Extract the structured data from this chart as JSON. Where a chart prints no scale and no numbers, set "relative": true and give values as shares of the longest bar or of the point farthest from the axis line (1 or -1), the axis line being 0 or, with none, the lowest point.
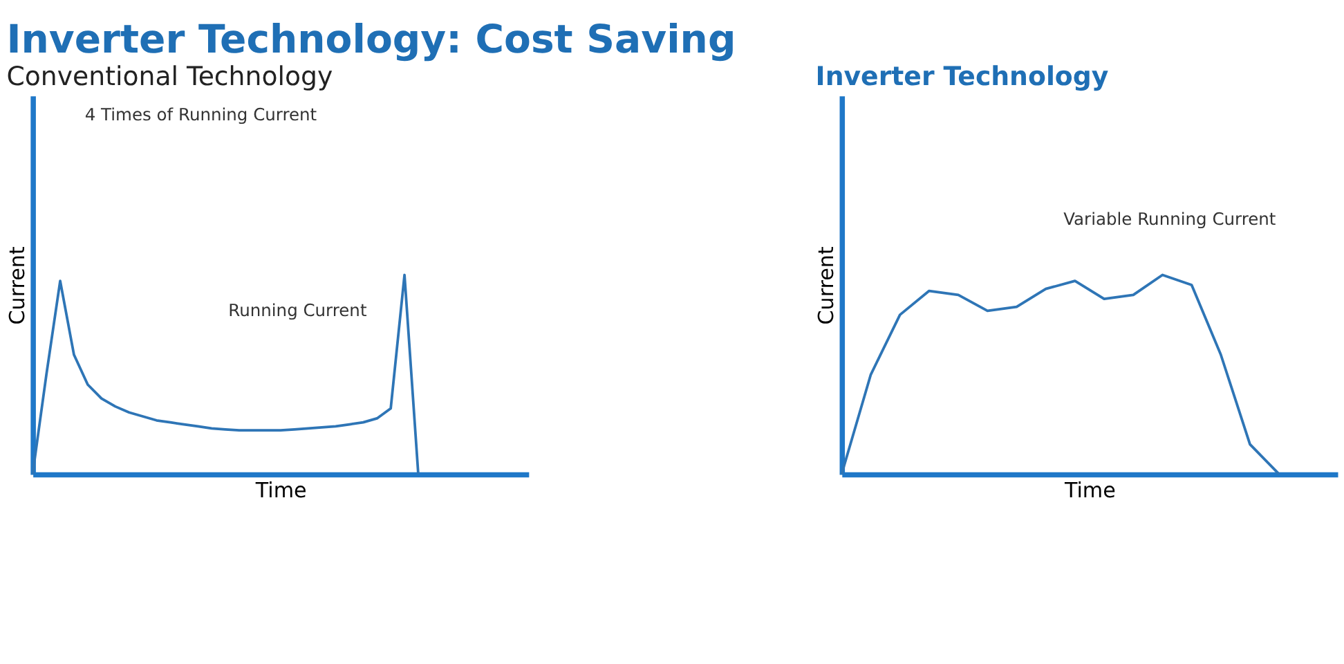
{
  "chart_data": [
    {
      "type": "line",
      "title": "Inverter Technology: Cost Saving",
      "subtitle": "Conventional Technology",
      "xlabel": "Time",
      "ylabel": "Current",
      "relative": true,
      "tick_labels": false,
      "grid": false,
      "categories": [
        null,
        null,
        null,
        null,
        null,
        null,
        null,
        null,
        null,
        null,
        null,
        null,
        null,
        null,
        null,
        null,
        null,
        null,
        null,
        null,
        null,
        null,
        null,
        null,
        null,
        null,
        null,
        null,
        null,
        null,
        null,
        null,
        null,
        null,
        null,
        null,
        null
      ],
      "series": [
        {
          "color": "#2e75b6",
          "values": [
            0,
            0.5,
            0.97,
            0.6,
            0.45,
            0.38,
            0.34,
            0.31,
            0.29,
            0.27,
            0.26,
            0.25,
            0.24,
            0.23,
            0.225,
            0.22,
            0.22,
            0.22,
            0.22,
            0.225,
            0.23,
            0.235,
            0.24,
            0.25,
            0.26,
            0.28,
            0.33,
            1.0,
            0,
            null,
            null,
            null,
            null,
            null,
            null,
            null,
            null
          ]
        }
      ],
      "annotations": [
        "4 Times of Running Current",
        "Running Current"
      ]
    },
    {
      "type": "line",
      "title": "Inverter Technology",
      "xlabel": "Time",
      "ylabel": "Current",
      "relative": true,
      "tick_labels": false,
      "grid": false,
      "categories": [
        null,
        null,
        null,
        null,
        null,
        null,
        null,
        null,
        null,
        null,
        null,
        null,
        null,
        null,
        null,
        null,
        null,
        null
      ],
      "series": [
        {
          "color": "#2e75b6",
          "values": [
            0,
            0.5,
            0.8,
            0.92,
            0.9,
            0.82,
            0.84,
            0.93,
            0.97,
            0.88,
            0.9,
            1.0,
            0.95,
            0.6,
            0.15,
            0,
            null,
            null
          ]
        }
      ],
      "annotations": [
        "Variable Running Current"
      ]
    }
  ]
}
